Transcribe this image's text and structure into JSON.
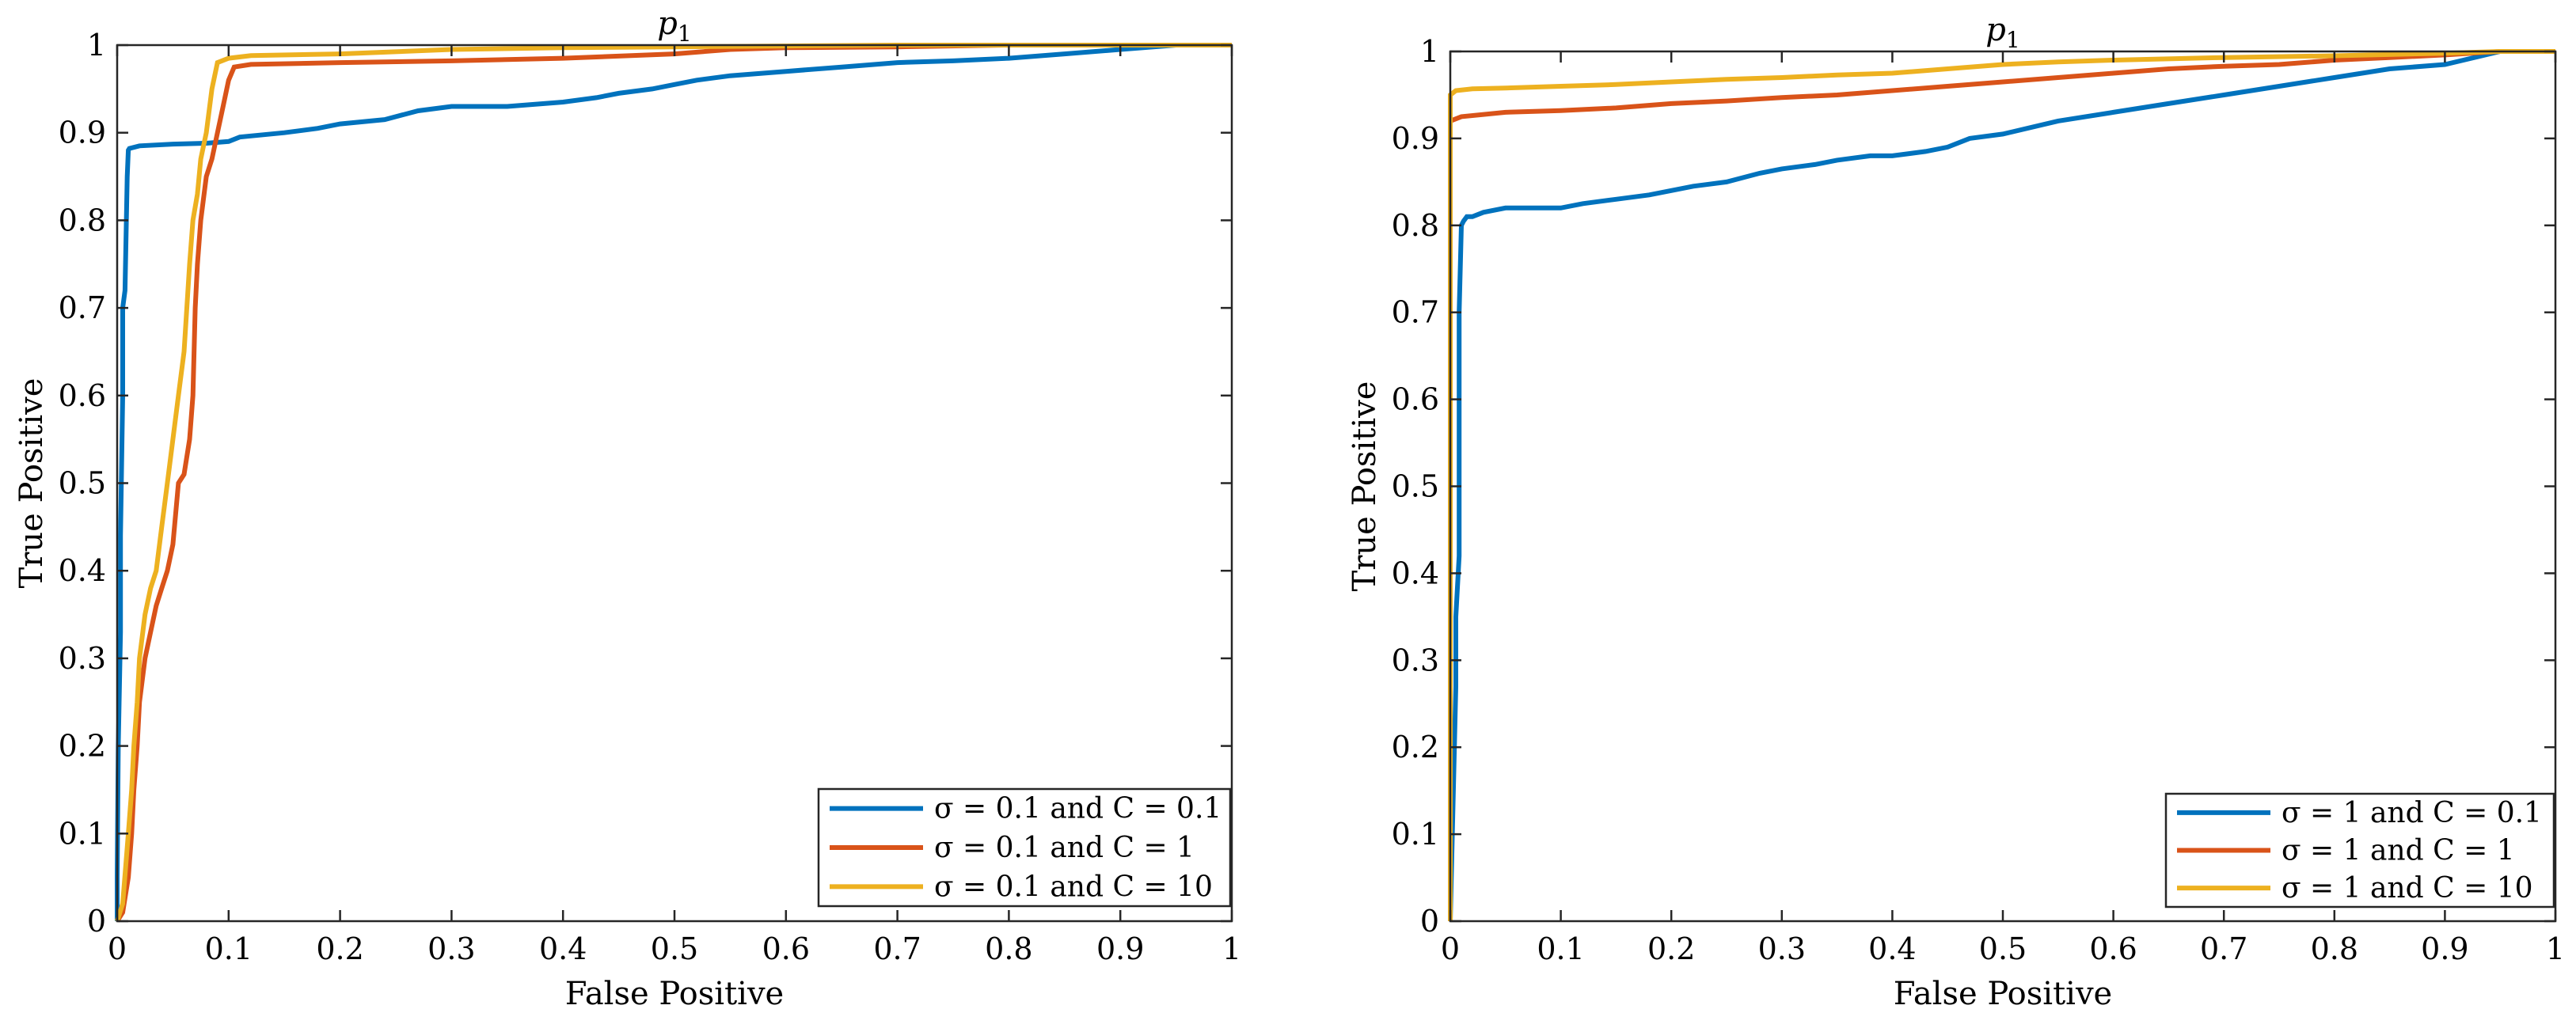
{
  "chart_data": [
    {
      "type": "line",
      "title": "p1",
      "title_base": "p",
      "title_sub": "1",
      "xlabel": "False Positive",
      "ylabel": "True Positive",
      "xlim": [
        0,
        1
      ],
      "ylim": [
        0,
        1
      ],
      "xticks": [
        0,
        0.1,
        0.2,
        0.3,
        0.4,
        0.5,
        0.6,
        0.7,
        0.8,
        0.9,
        1
      ],
      "xtick_labels": [
        "0",
        "0.1",
        "0.2",
        "0.3",
        "0.4",
        "0.5",
        "0.6",
        "0.7",
        "0.8",
        "0.9",
        "1"
      ],
      "yticks": [
        0,
        0.1,
        0.2,
        0.3,
        0.4,
        0.5,
        0.6,
        0.7,
        0.8,
        0.9,
        1
      ],
      "ytick_labels": [
        "0",
        "0.1",
        "0.2",
        "0.3",
        "0.4",
        "0.5",
        "0.6",
        "0.7",
        "0.8",
        "0.9",
        "1"
      ],
      "grid": false,
      "legend_location": "bottom-right",
      "series": [
        {
          "name": "σ = 0.1 and C = 0.1",
          "color": "#0072BD",
          "x": [
            0,
            0,
            0.001,
            0.003,
            0.003,
            0.005,
            0.005,
            0.007,
            0.009,
            0.01,
            0.011,
            0.02,
            0.05,
            0.08,
            0.1,
            0.11,
            0.15,
            0.18,
            0.2,
            0.24,
            0.27,
            0.3,
            0.35,
            0.4,
            0.43,
            0.45,
            0.48,
            0.5,
            0.52,
            0.55,
            0.6,
            0.65,
            0.7,
            0.75,
            0.8,
            0.85,
            0.9,
            0.95,
            0.96,
            1
          ],
          "y": [
            0,
            0.05,
            0.2,
            0.33,
            0.44,
            0.6,
            0.7,
            0.72,
            0.85,
            0.88,
            0.882,
            0.885,
            0.887,
            0.888,
            0.89,
            0.895,
            0.9,
            0.905,
            0.91,
            0.915,
            0.925,
            0.93,
            0.93,
            0.935,
            0.94,
            0.945,
            0.95,
            0.955,
            0.96,
            0.965,
            0.97,
            0.975,
            0.98,
            0.982,
            0.985,
            0.99,
            0.995,
            1,
            1,
            1
          ]
        },
        {
          "name": "σ = 0.1 and C = 1",
          "color": "#D95319",
          "x": [
            0,
            0.005,
            0.01,
            0.013,
            0.015,
            0.018,
            0.02,
            0.025,
            0.03,
            0.035,
            0.04,
            0.045,
            0.05,
            0.055,
            0.06,
            0.065,
            0.068,
            0.07,
            0.072,
            0.075,
            0.08,
            0.085,
            0.09,
            0.095,
            0.1,
            0.105,
            0.12,
            0.2,
            0.3,
            0.4,
            0.5,
            0.55,
            0.6,
            0.7,
            0.8,
            0.9,
            1
          ],
          "y": [
            0,
            0.01,
            0.05,
            0.1,
            0.15,
            0.2,
            0.25,
            0.3,
            0.33,
            0.36,
            0.38,
            0.4,
            0.43,
            0.5,
            0.51,
            0.55,
            0.6,
            0.7,
            0.75,
            0.8,
            0.85,
            0.87,
            0.9,
            0.93,
            0.96,
            0.975,
            0.978,
            0.98,
            0.982,
            0.985,
            0.99,
            0.995,
            0.997,
            0.998,
            1,
            1,
            1
          ]
        },
        {
          "name": "σ = 0.1 and C = 10",
          "color": "#EDB120",
          "x": [
            0,
            0.005,
            0.01,
            0.013,
            0.015,
            0.018,
            0.02,
            0.025,
            0.03,
            0.035,
            0.04,
            0.045,
            0.05,
            0.055,
            0.06,
            0.065,
            0.068,
            0.072,
            0.075,
            0.08,
            0.085,
            0.09,
            0.1,
            0.12,
            0.2,
            0.3,
            0.4,
            0.5,
            0.6,
            0.7,
            0.8,
            0.9,
            1
          ],
          "y": [
            0,
            0.02,
            0.1,
            0.15,
            0.2,
            0.25,
            0.3,
            0.35,
            0.38,
            0.4,
            0.45,
            0.5,
            0.55,
            0.6,
            0.65,
            0.75,
            0.8,
            0.83,
            0.87,
            0.9,
            0.95,
            0.98,
            0.985,
            0.988,
            0.99,
            0.995,
            0.997,
            0.998,
            0.999,
            1,
            1,
            1,
            1
          ]
        }
      ],
      "legend": [
        "σ = 0.1 and C = 0.1",
        "σ = 0.1 and C = 1",
        "σ = 0.1 and C = 10"
      ]
    },
    {
      "type": "line",
      "title": "p1",
      "title_base": "p",
      "title_sub": "1",
      "xlabel": "False Positive",
      "ylabel": "True Positive",
      "xlim": [
        0,
        1
      ],
      "ylim": [
        0,
        1
      ],
      "xticks": [
        0,
        0.1,
        0.2,
        0.3,
        0.4,
        0.5,
        0.6,
        0.7,
        0.8,
        0.9,
        1
      ],
      "xtick_labels": [
        "0",
        "0.1",
        "0.2",
        "0.3",
        "0.4",
        "0.5",
        "0.6",
        "0.7",
        "0.8",
        "0.9",
        "1"
      ],
      "yticks": [
        0,
        0.1,
        0.2,
        0.3,
        0.4,
        0.5,
        0.6,
        0.7,
        0.8,
        0.9,
        1
      ],
      "ytick_labels": [
        "0",
        "0.1",
        "0.2",
        "0.3",
        "0.4",
        "0.5",
        "0.6",
        "0.7",
        "0.8",
        "0.9",
        "1"
      ],
      "grid": false,
      "legend_location": "bottom-right",
      "series": [
        {
          "name": "σ = 1 and C = 0.1",
          "color": "#0072BD",
          "x": [
            0,
            0.005,
            0.005,
            0.008,
            0.008,
            0.01,
            0.012,
            0.015,
            0.02,
            0.03,
            0.05,
            0.08,
            0.1,
            0.12,
            0.15,
            0.18,
            0.2,
            0.22,
            0.25,
            0.28,
            0.3,
            0.33,
            0.35,
            0.38,
            0.4,
            0.43,
            0.45,
            0.47,
            0.5,
            0.55,
            0.6,
            0.65,
            0.7,
            0.75,
            0.8,
            0.85,
            0.9,
            0.95,
            1
          ],
          "y": [
            0,
            0.27,
            0.35,
            0.42,
            0.7,
            0.8,
            0.805,
            0.81,
            0.81,
            0.815,
            0.82,
            0.82,
            0.82,
            0.825,
            0.83,
            0.835,
            0.84,
            0.845,
            0.85,
            0.86,
            0.865,
            0.87,
            0.875,
            0.88,
            0.88,
            0.885,
            0.89,
            0.9,
            0.905,
            0.92,
            0.93,
            0.94,
            0.95,
            0.96,
            0.97,
            0.98,
            0.985,
            1,
            1
          ]
        },
        {
          "name": "σ = 1 and C = 1",
          "color": "#D95319",
          "x": [
            0,
            0,
            0.01,
            0.05,
            0.1,
            0.15,
            0.2,
            0.25,
            0.3,
            0.35,
            0.4,
            0.45,
            0.5,
            0.55,
            0.6,
            0.65,
            0.7,
            0.75,
            0.8,
            0.85,
            0.9,
            0.95,
            1
          ],
          "y": [
            0,
            0.92,
            0.925,
            0.93,
            0.932,
            0.935,
            0.94,
            0.943,
            0.947,
            0.95,
            0.955,
            0.96,
            0.965,
            0.97,
            0.975,
            0.98,
            0.983,
            0.985,
            0.99,
            0.993,
            0.996,
            1,
            1
          ]
        },
        {
          "name": "σ = 1 and C = 10",
          "color": "#EDB120",
          "x": [
            0,
            0,
            0.005,
            0.02,
            0.05,
            0.1,
            0.15,
            0.2,
            0.25,
            0.3,
            0.35,
            0.4,
            0.45,
            0.5,
            0.55,
            0.6,
            0.7,
            0.8,
            0.9,
            0.95,
            1
          ],
          "y": [
            0,
            0.95,
            0.955,
            0.957,
            0.958,
            0.96,
            0.962,
            0.965,
            0.968,
            0.97,
            0.973,
            0.975,
            0.98,
            0.985,
            0.988,
            0.99,
            0.993,
            0.995,
            0.998,
            1,
            1
          ]
        }
      ],
      "legend": [
        "σ = 1 and C = 0.1",
        "σ = 1 and C = 1",
        "σ = 1 and C = 10"
      ]
    }
  ]
}
